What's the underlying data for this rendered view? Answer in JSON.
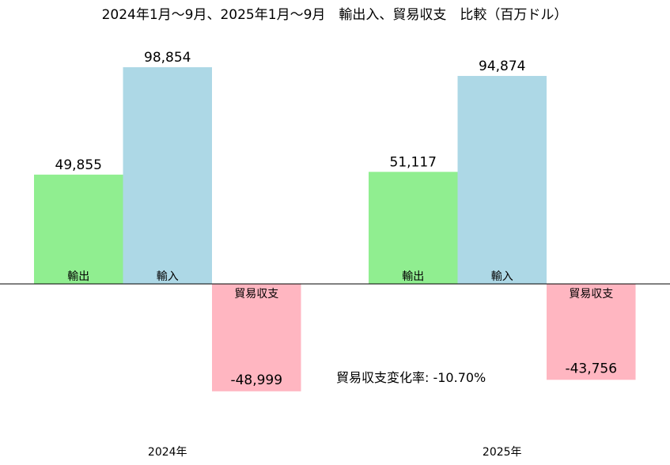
{
  "chart_data": {
    "type": "bar",
    "title": "2024年1月～9月、2025年1月～9月　輸出入、貿易収支　比較（百万ドル）",
    "categories": [
      "2024年",
      "2025年"
    ],
    "series": [
      {
        "name": "輸出",
        "color": "#90EE90",
        "values": [
          49855,
          51117
        ],
        "labels": [
          "49,855",
          "51,117"
        ]
      },
      {
        "name": "輸入",
        "color": "#ADD8E6",
        "values": [
          98854,
          94874
        ],
        "labels": [
          "98,854",
          "94,874"
        ]
      },
      {
        "name": "貿易収支",
        "color": "#FFB6C1",
        "values": [
          -48999,
          -43756
        ],
        "labels": [
          "-48,999",
          "-43,756"
        ]
      }
    ],
    "annotation": "貿易収支変化率: -10.70%",
    "annotation_color": "#FF0000",
    "xlabel": "",
    "ylabel": "",
    "grid": false
  }
}
